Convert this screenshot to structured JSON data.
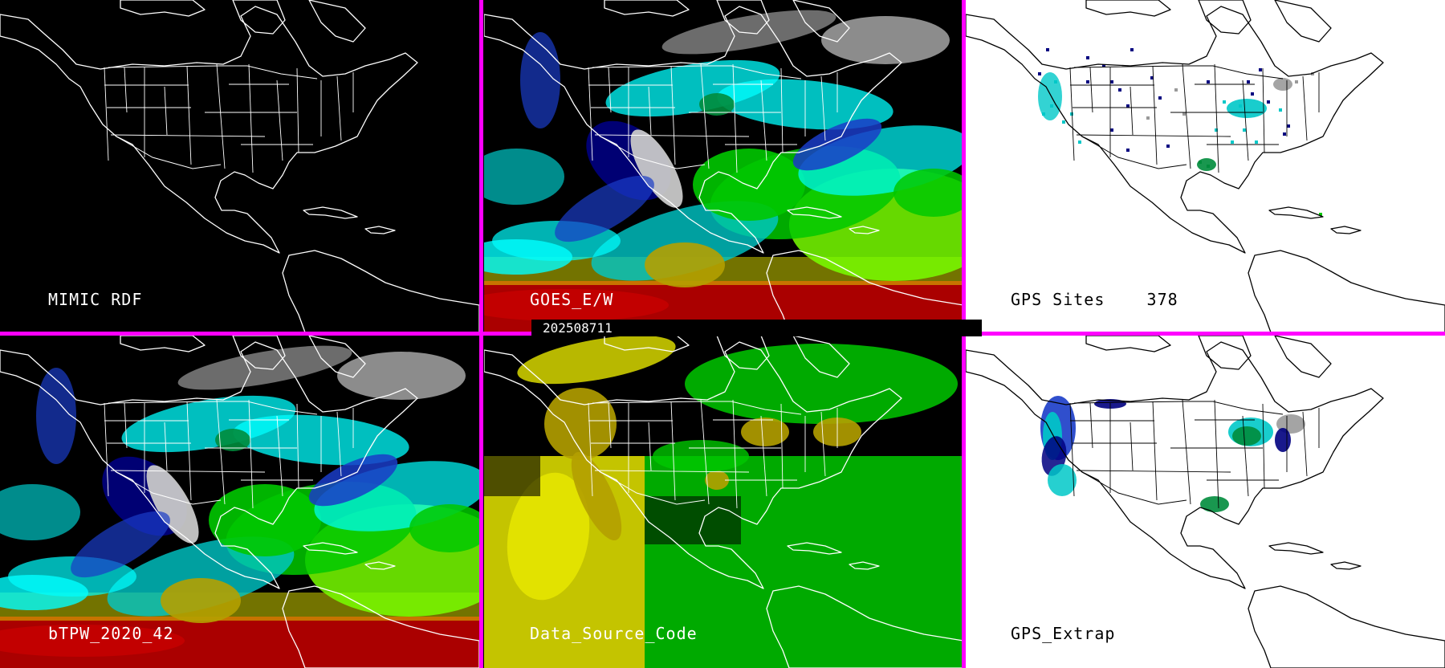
{
  "timestamp": "202508711",
  "panels": [
    {
      "id": "mimic",
      "label": "MIMIC RDF",
      "theme": "dark",
      "layer": "none"
    },
    {
      "id": "goes",
      "label": "GOES_E/W",
      "theme": "dark",
      "layer": "goes"
    },
    {
      "id": "gps-sites",
      "label": "GPS Sites",
      "count": "378",
      "theme": "light",
      "layer": "sites"
    },
    {
      "id": "btpw",
      "label": "bTPW_2020_42",
      "theme": "dark",
      "layer": "btpw"
    },
    {
      "id": "source",
      "label": "Data_Source_Code",
      "theme": "dark",
      "layer": "source"
    },
    {
      "id": "gps-extrap",
      "label": "GPS_Extrap",
      "theme": "light",
      "layer": "extrap"
    }
  ],
  "colors": {
    "separator": "#ff00ff",
    "tpw_scale": [
      "#9a9a9a",
      "#c8c8c8",
      "#000080",
      "#1a3cc8",
      "#00c8c8",
      "#00ffff",
      "#008c3c",
      "#00c800",
      "#78ff00",
      "#b4a000",
      "#e6e600",
      "#c80000"
    ]
  }
}
